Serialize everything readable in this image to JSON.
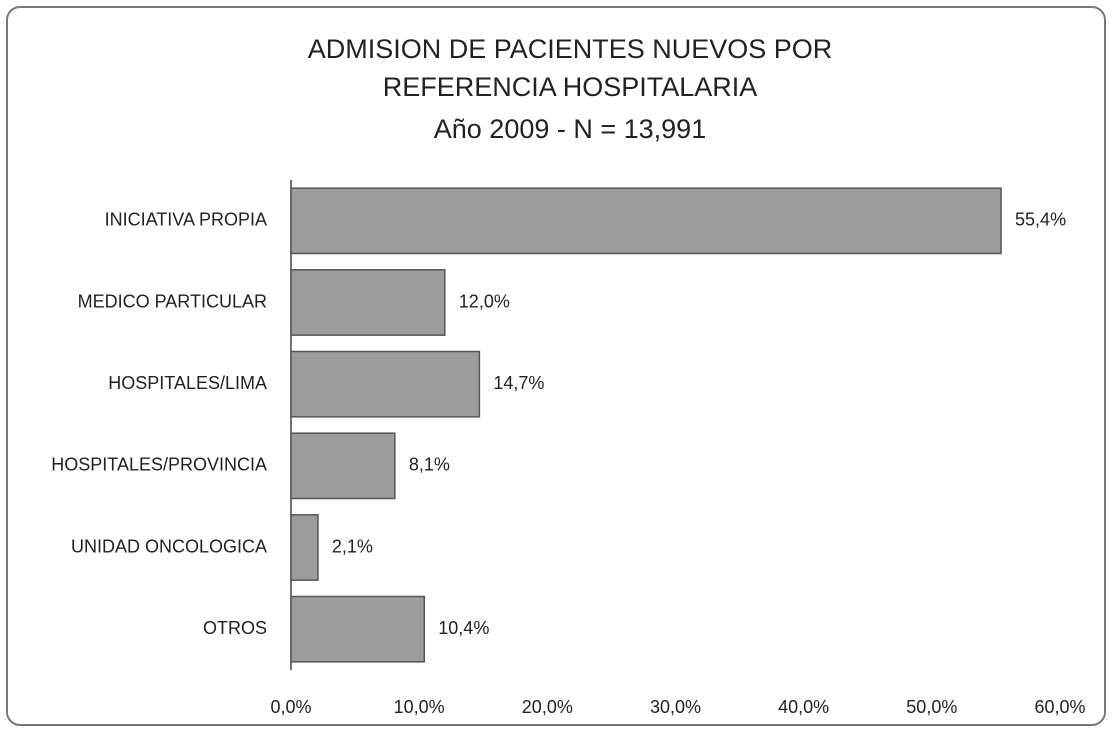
{
  "chart_data": {
    "type": "hbar",
    "title": "ADMISION DE PACIENTES NUEVOS POR REFERENCIA HOSPITALARIA",
    "subtitle": "Año 2009 - N = 13,991",
    "categories": [
      "INICIATIVA PROPIA",
      "MEDICO PARTICULAR",
      "HOSPITALES/LIMA",
      "HOSPITALES/PROVINCIA",
      "UNIDAD ONCOLOGICA",
      "OTROS"
    ],
    "values": [
      55.4,
      12.0,
      14.7,
      8.1,
      2.1,
      10.4
    ],
    "value_labels": [
      "55,4%",
      "12,0%",
      "14,7%",
      "8,1%",
      "2,1%",
      "10,4%"
    ],
    "color": "#9c9c9c",
    "xlim": [
      0,
      60
    ],
    "xticks": [
      {
        "value": 0,
        "label": "0,0%"
      },
      {
        "value": 10,
        "label": "10,0%"
      },
      {
        "value": 20,
        "label": "20,0%"
      },
      {
        "value": 30,
        "label": "30,0%"
      },
      {
        "value": 40,
        "label": "40,0%"
      },
      {
        "value": 50,
        "label": "50,0%"
      },
      {
        "value": 60,
        "label": "60,0%"
      }
    ],
    "grid": false
  }
}
